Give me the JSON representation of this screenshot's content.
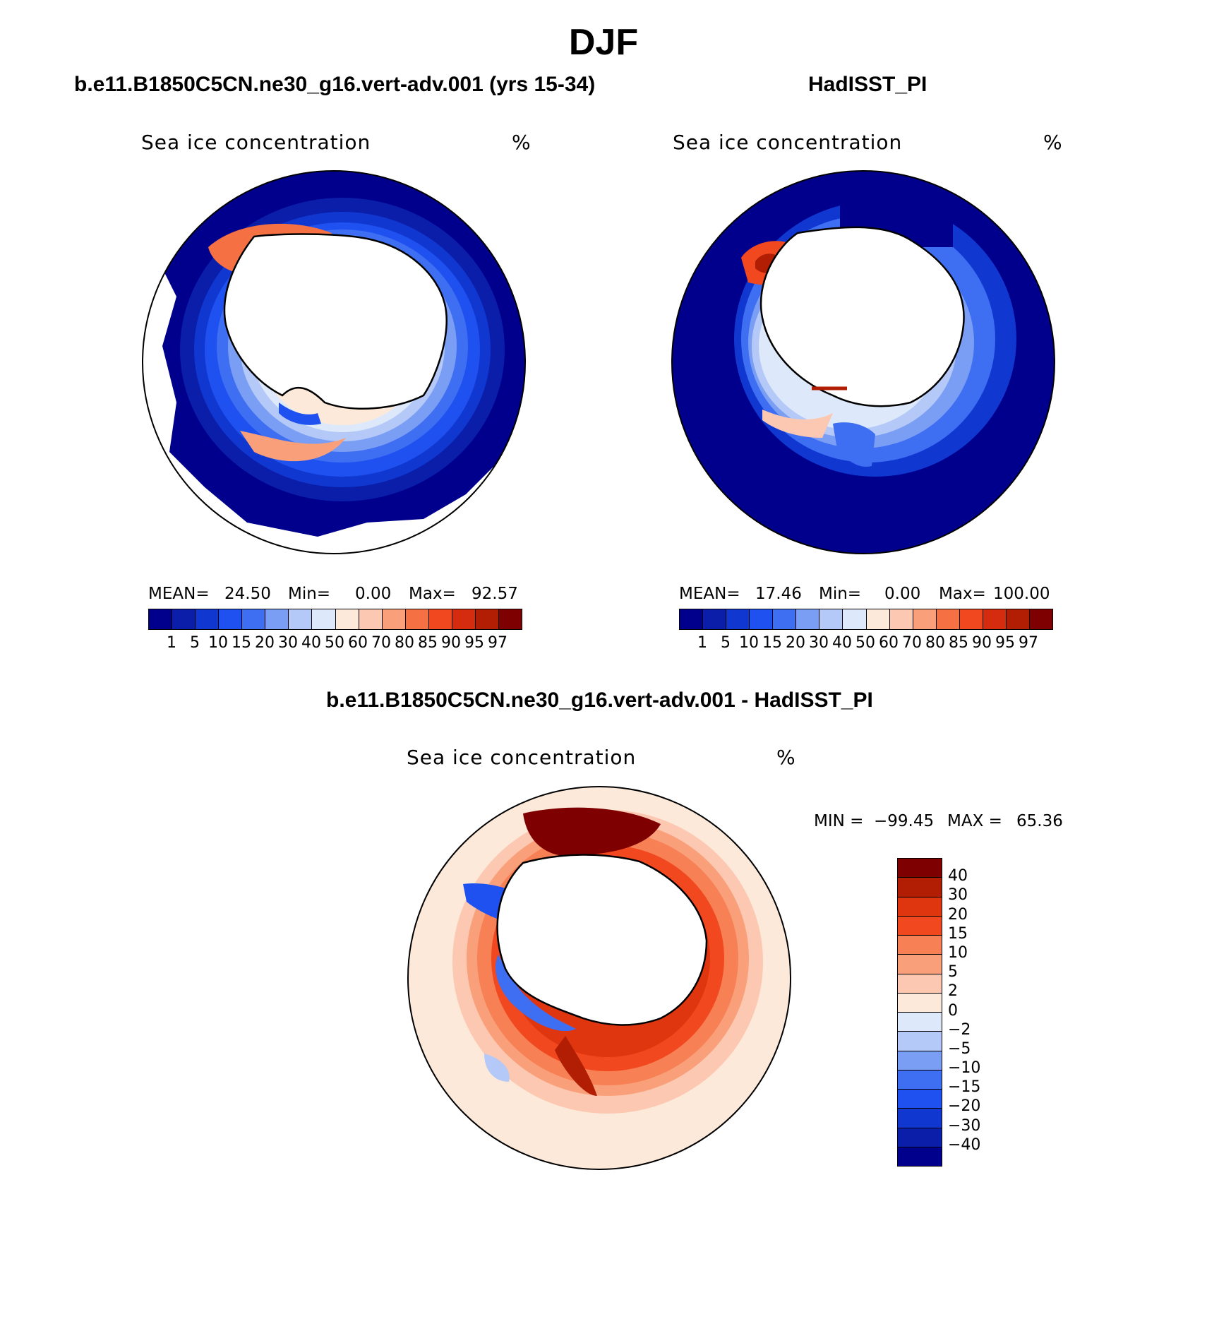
{
  "figure_title": "DJF",
  "panels": {
    "model": {
      "case_title": "b.e11.B1850C5CN.ne30_g16.vert-adv.001 (yrs 15-34)",
      "variable": "Sea ice concentration",
      "units": "%",
      "stats": {
        "mean_label": "MEAN=",
        "mean": "24.50",
        "min_label": "Min=",
        "min": "0.00",
        "max_label": "Max=",
        "max": "92.57"
      }
    },
    "obs": {
      "case_title": "HadISST_PI",
      "variable": "Sea ice concentration",
      "units": "%",
      "stats": {
        "mean_label": "MEAN=",
        "mean": "17.46",
        "min_label": "Min=",
        "min": "0.00",
        "max_label": "Max=",
        "max": "100.00"
      }
    },
    "diff": {
      "case_title": "b.e11.B1850C5CN.ne30_g16.vert-adv.001 - HadISST_PI",
      "variable": "Sea ice concentration",
      "units": "%",
      "stats": {
        "min_label": "MIN =",
        "min": "−99.45",
        "max_label": "MAX =",
        "max": "65.36"
      }
    }
  },
  "colorbar_abs": {
    "levels": [
      "1",
      "5",
      "10",
      "15",
      "20",
      "30",
      "40",
      "50",
      "60",
      "70",
      "80",
      "85",
      "90",
      "95",
      "97"
    ],
    "colors": [
      "#00008c",
      "#0a1eaa",
      "#1038d0",
      "#1f50f0",
      "#3e6ef2",
      "#7b9ef5",
      "#b4c9f8",
      "#dde9fb",
      "#fde9d9",
      "#fcc8b1",
      "#f9a07b",
      "#f57043",
      "#f2481f",
      "#d52b0e",
      "#b11e04",
      "#7f0000"
    ]
  },
  "colorbar_diff": {
    "levels": [
      "40",
      "30",
      "20",
      "15",
      "10",
      "5",
      "2",
      "0",
      "−2",
      "−5",
      "−10",
      "−15",
      "−20",
      "−30",
      "−40"
    ],
    "colors": [
      "#7f0000",
      "#b11e04",
      "#e0360f",
      "#f2481f",
      "#f78055",
      "#f9a07b",
      "#fcc8b1",
      "#fde9d9",
      "#dde9fb",
      "#b4c9f8",
      "#7b9ef5",
      "#3e6ef2",
      "#1f50f0",
      "#1038d0",
      "#0a1eaa",
      "#00008c"
    ]
  }
}
